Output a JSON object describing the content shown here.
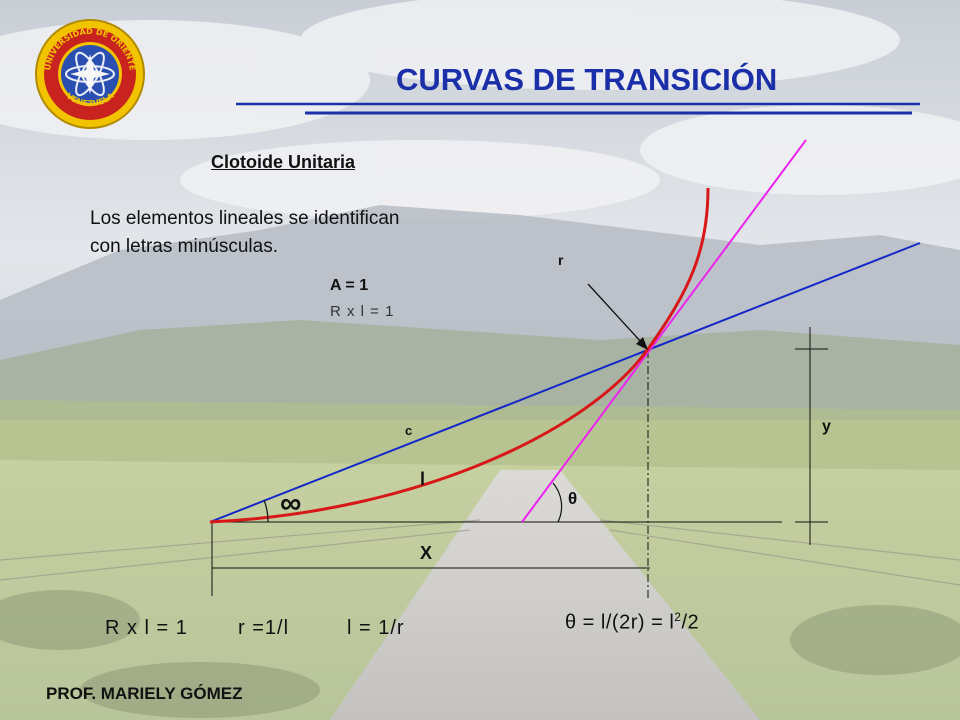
{
  "header": {
    "title": "CURVAS DE TRANSICIÓN",
    "seal_text_top": "UNIVERSIDAD DE ORIENTE",
    "seal_text_bottom": "VENEZUELA"
  },
  "content": {
    "subtitle": "Clotoide Unitaria",
    "description_line1": "Los elementos lineales se identifican",
    "description_line2": "con letras minúsculas."
  },
  "diagram": {
    "a_equation": "A = 1",
    "rxl_small": "R x l = 1",
    "label_r": "r",
    "label_c": "c",
    "label_y": "y",
    "label_l": "l",
    "label_theta": "θ",
    "label_infinity": "∞",
    "label_x": "X",
    "colors": {
      "tangent_line": "#1428c8",
      "clothoid_curve": "#d81818",
      "tangent_at_point": "#ee22ee",
      "construction": "#111111"
    }
  },
  "formulas": {
    "theta_prefix": "θ =  l/(2r) =  l",
    "theta_exp": "2",
    "theta_suffix": "/2",
    "rxl": "R x l = 1",
    "r": "r =1/l",
    "l": "l = 1/r"
  },
  "footer": {
    "author": "PROF. MARIELY GÓMEZ"
  }
}
